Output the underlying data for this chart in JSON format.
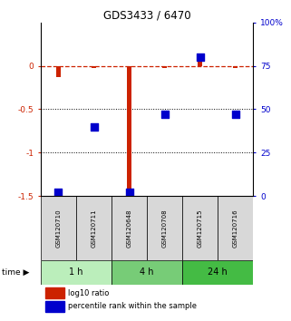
{
  "title": "GDS3433 / 6470",
  "samples": [
    "GSM120710",
    "GSM120711",
    "GSM120648",
    "GSM120708",
    "GSM120715",
    "GSM120716"
  ],
  "log10_ratio": [
    -0.13,
    -0.02,
    -1.55,
    -0.02,
    0.13,
    -0.02
  ],
  "percentile_rank": [
    2,
    40,
    2,
    47,
    80,
    47
  ],
  "ylim_left": [
    -1.5,
    0.5
  ],
  "ylim_right": [
    0,
    100
  ],
  "yticks_left": [
    0,
    -0.5,
    -1,
    -1.5
  ],
  "ytick_labels_left": [
    "0",
    "-0.5",
    "-1",
    "-1.5"
  ],
  "ytick_labels_right": [
    "100%",
    "75",
    "50",
    "25",
    "0"
  ],
  "yticks_right_vals": [
    100,
    75,
    50,
    25,
    0
  ],
  "dotted_line_vals": [
    -0.5,
    -1.0
  ],
  "time_groups": [
    {
      "label": "1 h",
      "samples": [
        "GSM120710",
        "GSM120711"
      ],
      "color": "#bbeebb"
    },
    {
      "label": "4 h",
      "samples": [
        "GSM120648",
        "GSM120708"
      ],
      "color": "#77cc77"
    },
    {
      "label": "24 h",
      "samples": [
        "GSM120715",
        "GSM120716"
      ],
      "color": "#44bb44"
    }
  ],
  "bar_color_red": "#cc2200",
  "bar_color_blue": "#0000cc",
  "legend_red_label": "log10 ratio",
  "legend_blue_label": "percentile rank within the sample",
  "left_tick_color": "#cc2200",
  "right_tick_color": "#0000cc",
  "bg_color": "#ffffff",
  "sample_box_color": "#d8d8d8",
  "bar_width": 0.12,
  "marker_size": 30
}
